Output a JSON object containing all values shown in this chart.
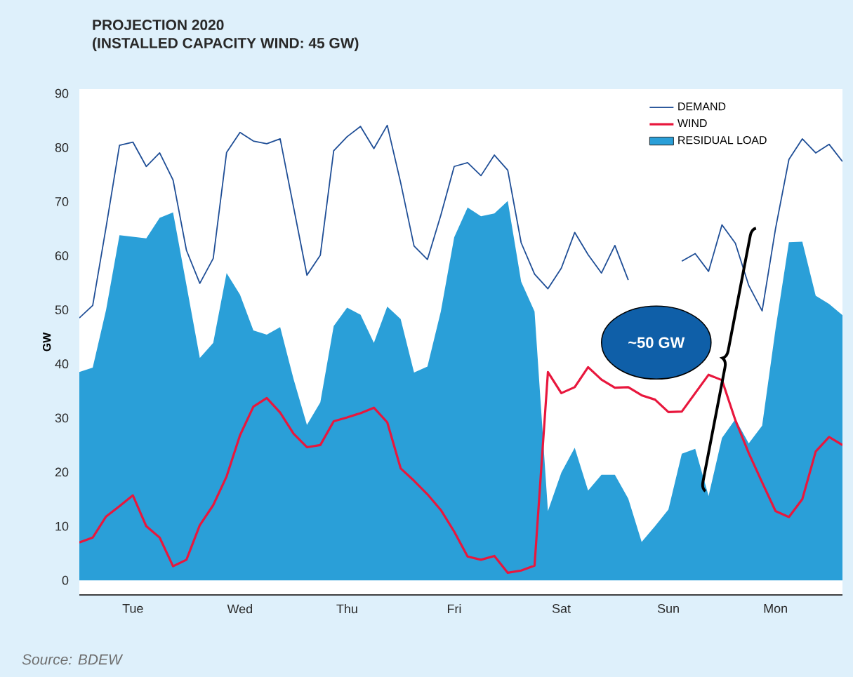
{
  "chart_data": {
    "type": "line",
    "title": "PROJECTION 2020",
    "subtitle": "(INSTALLED CAPACITY WIND: 45 GW)",
    "ylabel": "GW",
    "categories": [
      null,
      null,
      null,
      null,
      "Tue",
      null,
      null,
      null,
      null,
      null,
      null,
      null,
      "Wed",
      null,
      null,
      null,
      null,
      null,
      null,
      null,
      "Thu",
      null,
      null,
      null,
      null,
      null,
      null,
      null,
      "Fri",
      null,
      null,
      null,
      null,
      null,
      null,
      null,
      "Sat",
      null,
      null,
      null,
      null,
      null,
      null,
      null,
      "Sun",
      null,
      null,
      null,
      null,
      null,
      null,
      null,
      "Mon",
      null,
      null,
      null,
      null,
      null
    ],
    "ylim": [
      -2.7,
      90.8
    ],
    "yticks": [
      0,
      10,
      20,
      30,
      40,
      50,
      60,
      70,
      80,
      90
    ],
    "legend": "top right",
    "series": [
      {
        "name": "DEMAND",
        "color": "#1f4e96",
        "values": [
          48.5,
          50.8,
          65.3,
          80.4,
          81,
          76.5,
          79,
          74,
          61,
          54.9,
          59.5,
          79.1,
          82.8,
          81.2,
          80.7,
          81.6,
          69,
          56.4,
          60.1,
          79.4,
          82,
          83.9,
          79.8,
          84.1,
          73.5,
          61.8,
          59.3,
          67.5,
          76.5,
          77.2,
          74.8,
          78.6,
          75.8,
          62.4,
          56.6,
          53.9,
          57.7,
          64.3,
          60.2,
          56.8,
          61.9,
          55.5,
          null,
          null,
          null,
          59,
          60.4,
          57.1,
          65.7,
          62.3,
          54.5,
          49.8,
          65,
          77.8,
          81.6,
          79,
          80.6,
          77.4
        ]
      },
      {
        "name": "WIND",
        "color": "#e8173d",
        "values": [
          7,
          7.9,
          11.8,
          13.7,
          15.7,
          10,
          7.9,
          2.6,
          3.8,
          10.2,
          13.9,
          19.2,
          26.8,
          32.1,
          33.7,
          31,
          27.1,
          24.6,
          25,
          29.4,
          30.1,
          30.9,
          31.9,
          29.2,
          20.7,
          18.4,
          15.9,
          13,
          9,
          4.4,
          3.8,
          4.5,
          1.4,
          1.8,
          2.7,
          38.5,
          34.6,
          35.7,
          39.4,
          37.1,
          35.6,
          35.7,
          34.2,
          33.4,
          31.1,
          31.2,
          34.6,
          38,
          37,
          29.6,
          23.5,
          18.1,
          12.8,
          11.7,
          15,
          23.8,
          26.5,
          25
        ]
      },
      {
        "name": "RESIDUAL LOAD",
        "type": "area",
        "color": "#2a9fd8",
        "values": [
          38.5,
          39.3,
          50,
          63.8,
          63.5,
          63.2,
          67,
          68,
          54.6,
          41.1,
          43.9,
          56.8,
          52.8,
          46.2,
          45.4,
          46.8,
          37.2,
          28.7,
          32.9,
          47,
          50.4,
          49.1,
          43.9,
          50.6,
          48.3,
          38.4,
          39.5,
          49.7,
          63.4,
          68.9,
          67.3,
          67.8,
          70.1,
          55.2,
          49.7,
          12.8,
          19.9,
          24.5,
          16.6,
          19.5,
          19.5,
          15.1,
          7.1,
          10,
          13.1,
          23.4,
          24.3,
          15.6,
          26.3,
          29.8,
          25.3,
          28.6,
          46.4,
          62.5,
          62.6,
          52.6,
          51.1,
          49
        ]
      }
    ],
    "annotations": [
      "~50 GW",
      "Source: BDEW"
    ]
  }
}
